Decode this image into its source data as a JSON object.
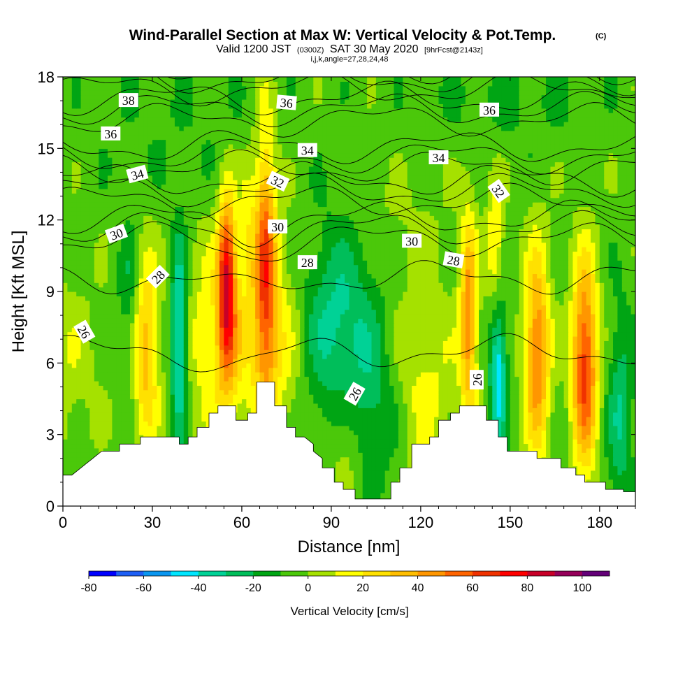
{
  "title": {
    "main": "Wind-Parallel Section at Max W: Vertical Velocity & Pot.Temp.",
    "copyright": "(C)",
    "valid_prefix": "Valid 1200 JST",
    "valid_utc": "(0300Z)",
    "valid_date": "SAT 30 May 2020",
    "forecast": "[9hrFcst@2143z]",
    "params": "i,j,k,angle=27,28,24,48"
  },
  "chart_data": {
    "type": "heatmap",
    "xlabel": "Distance [nm]",
    "ylabel": "Height [Kft MSL]",
    "xlim": [
      0,
      192
    ],
    "ylim": [
      0,
      18
    ],
    "x_ticks": [
      "0",
      "30",
      "60",
      "90",
      "120",
      "150",
      "180"
    ],
    "x_tick_values": [
      0,
      30,
      60,
      90,
      120,
      150,
      180
    ],
    "y_ticks": [
      "0",
      "3",
      "6",
      "9",
      "12",
      "15",
      "18"
    ],
    "y_tick_values": [
      0,
      3,
      6,
      9,
      12,
      15,
      18
    ],
    "colorbar": {
      "title": "Vertical Velocity [cm/s]",
      "labels": [
        "-80",
        "-60",
        "-40",
        "-20",
        "0",
        "20",
        "40",
        "60",
        "80",
        "100"
      ],
      "label_values": [
        -80,
        -60,
        -40,
        -20,
        0,
        20,
        40,
        60,
        80,
        100
      ],
      "min": -80,
      "max": 110,
      "step": 10,
      "colors": [
        "#0000ff",
        "#1e5ff5",
        "#0a96f0",
        "#00e6ff",
        "#00d296",
        "#00be5a",
        "#00a514",
        "#4bc80a",
        "#a5e100",
        "#ffff00",
        "#ffe100",
        "#ffbe00",
        "#ff9600",
        "#ff6400",
        "#f03200",
        "#ff0000",
        "#c80028",
        "#96005a",
        "#640078"
      ]
    },
    "theta_contours": {
      "name": "Pot.Temp.",
      "levels": [
        26,
        28,
        30,
        32,
        34,
        36,
        38
      ],
      "labels": [
        {
          "text": "38",
          "x": 22,
          "y": 17.0,
          "angle": 0
        },
        {
          "text": "36",
          "x": 16,
          "y": 15.6,
          "angle": 0
        },
        {
          "text": "34",
          "x": 25,
          "y": 13.9,
          "angle": -15
        },
        {
          "text": "30",
          "x": 18,
          "y": 11.4,
          "angle": -20
        },
        {
          "text": "28",
          "x": 32,
          "y": 9.6,
          "angle": -45
        },
        {
          "text": "26",
          "x": 7,
          "y": 7.3,
          "angle": 60
        },
        {
          "text": "36",
          "x": 75,
          "y": 16.9,
          "angle": 5
        },
        {
          "text": "34",
          "x": 82,
          "y": 14.9,
          "angle": 0
        },
        {
          "text": "32",
          "x": 72,
          "y": 13.6,
          "angle": 25
        },
        {
          "text": "30",
          "x": 72,
          "y": 11.7,
          "angle": 0
        },
        {
          "text": "28",
          "x": 82,
          "y": 10.2,
          "angle": 0
        },
        {
          "text": "26",
          "x": 98,
          "y": 4.7,
          "angle": -60
        },
        {
          "text": "36",
          "x": 143,
          "y": 16.6,
          "angle": 0
        },
        {
          "text": "34",
          "x": 126,
          "y": 14.6,
          "angle": 0
        },
        {
          "text": "32",
          "x": 146,
          "y": 13.2,
          "angle": 55
        },
        {
          "text": "30",
          "x": 117,
          "y": 11.1,
          "angle": 0
        },
        {
          "text": "28",
          "x": 131,
          "y": 10.3,
          "angle": 10
        },
        {
          "text": "26",
          "x": 139,
          "y": 5.3,
          "angle": -90
        }
      ]
    },
    "terrain_kft": [
      [
        0,
        1.3
      ],
      [
        3,
        1.3
      ],
      [
        6,
        1.6
      ],
      [
        10,
        2.0
      ],
      [
        13,
        2.3
      ],
      [
        19,
        2.3
      ],
      [
        19,
        2.6
      ],
      [
        26,
        2.6
      ],
      [
        26,
        2.9
      ],
      [
        39,
        2.9
      ],
      [
        39,
        2.6
      ],
      [
        42,
        2.6
      ],
      [
        42,
        2.9
      ],
      [
        45,
        2.9
      ],
      [
        45,
        3.3
      ],
      [
        49,
        3.3
      ],
      [
        49,
        3.9
      ],
      [
        52,
        3.9
      ],
      [
        52,
        4.2
      ],
      [
        58,
        4.2
      ],
      [
        58,
        3.6
      ],
      [
        62,
        3.6
      ],
      [
        62,
        3.9
      ],
      [
        65,
        3.9
      ],
      [
        65,
        5.2
      ],
      [
        71,
        5.2
      ],
      [
        71,
        4.2
      ],
      [
        75,
        4.2
      ],
      [
        75,
        3.3
      ],
      [
        78,
        3.3
      ],
      [
        78,
        2.9
      ],
      [
        81,
        2.9
      ],
      [
        84,
        2.6
      ],
      [
        84,
        2.3
      ],
      [
        87,
        2.0
      ],
      [
        87,
        1.6
      ],
      [
        91,
        1.6
      ],
      [
        91,
        1.0
      ],
      [
        94,
        1.0
      ],
      [
        94,
        0.7
      ],
      [
        98,
        0.7
      ],
      [
        98,
        0.3
      ],
      [
        110,
        0.3
      ],
      [
        110,
        1.0
      ],
      [
        113,
        1.0
      ],
      [
        113,
        1.6
      ],
      [
        117,
        1.6
      ],
      [
        117,
        2.6
      ],
      [
        123,
        2.6
      ],
      [
        123,
        2.9
      ],
      [
        126,
        2.9
      ],
      [
        126,
        3.6
      ],
      [
        130,
        3.6
      ],
      [
        130,
        3.9
      ],
      [
        133,
        3.9
      ],
      [
        133,
        4.2
      ],
      [
        142,
        4.2
      ],
      [
        142,
        3.6
      ],
      [
        146,
        3.6
      ],
      [
        146,
        2.9
      ],
      [
        149,
        2.9
      ],
      [
        149,
        2.3
      ],
      [
        159,
        2.3
      ],
      [
        159,
        2.0
      ],
      [
        167,
        2.0
      ],
      [
        167,
        1.6
      ],
      [
        172,
        1.6
      ],
      [
        172,
        1.3
      ],
      [
        175,
        1.3
      ],
      [
        175,
        1.0
      ],
      [
        182,
        1.0
      ],
      [
        182,
        0.7
      ],
      [
        188,
        0.7
      ],
      [
        188,
        0.6
      ],
      [
        192,
        0.6
      ]
    ],
    "w_features_cm_s": [
      {
        "x": 0,
        "y": 6,
        "sx": 8,
        "sy": 2.5,
        "w": 12
      },
      {
        "x": 28,
        "y": 6.5,
        "sx": 3,
        "sy": 2.8,
        "w": 40
      },
      {
        "x": 39,
        "y": 7,
        "sx": 2,
        "sy": 3,
        "w": -45
      },
      {
        "x": 22,
        "y": 9,
        "sx": 2.5,
        "sy": 2,
        "w": -15
      },
      {
        "x": 55,
        "y": 9.5,
        "sx": 2,
        "sy": 2.5,
        "w": 70
      },
      {
        "x": 55,
        "y": 7,
        "sx": 4,
        "sy": 3,
        "w": 25
      },
      {
        "x": 46,
        "y": 7,
        "sx": 5,
        "sy": 3,
        "w": 15
      },
      {
        "x": 68,
        "y": 10.5,
        "sx": 2.5,
        "sy": 4,
        "w": 55
      },
      {
        "x": 70,
        "y": 7,
        "sx": 8,
        "sy": 3,
        "w": 28
      },
      {
        "x": 62,
        "y": 12,
        "sx": 2,
        "sy": 2,
        "w": 15
      },
      {
        "x": 92,
        "y": 7.5,
        "sx": 10,
        "sy": 3,
        "w": -30
      },
      {
        "x": 105,
        "y": 4,
        "sx": 8,
        "sy": 2.5,
        "w": -22
      },
      {
        "x": 95,
        "y": 3,
        "sx": 4,
        "sy": 2,
        "w": 20
      },
      {
        "x": 118,
        "y": 5,
        "sx": 10,
        "sy": 3,
        "w": 20
      },
      {
        "x": 136,
        "y": 8,
        "sx": 2,
        "sy": 3,
        "w": 50
      },
      {
        "x": 145,
        "y": 11,
        "sx": 2,
        "sy": 2,
        "w": 25
      },
      {
        "x": 146,
        "y": 5.5,
        "sx": 2,
        "sy": 2.2,
        "w": -45
      },
      {
        "x": 159,
        "y": 6.5,
        "sx": 3,
        "sy": 3,
        "w": 55
      },
      {
        "x": 175,
        "y": 6,
        "sx": 3,
        "sy": 3,
        "w": 70
      },
      {
        "x": 187,
        "y": 4,
        "sx": 3,
        "sy": 3,
        "w": -25
      },
      {
        "x": 150,
        "y": 17,
        "sx": 20,
        "sy": 1.5,
        "w": -8
      },
      {
        "x": 40,
        "y": 16,
        "sx": 25,
        "sy": 2,
        "w": -5
      },
      {
        "x": 110,
        "y": 12,
        "sx": 15,
        "sy": 1.5,
        "w": 5
      }
    ]
  }
}
